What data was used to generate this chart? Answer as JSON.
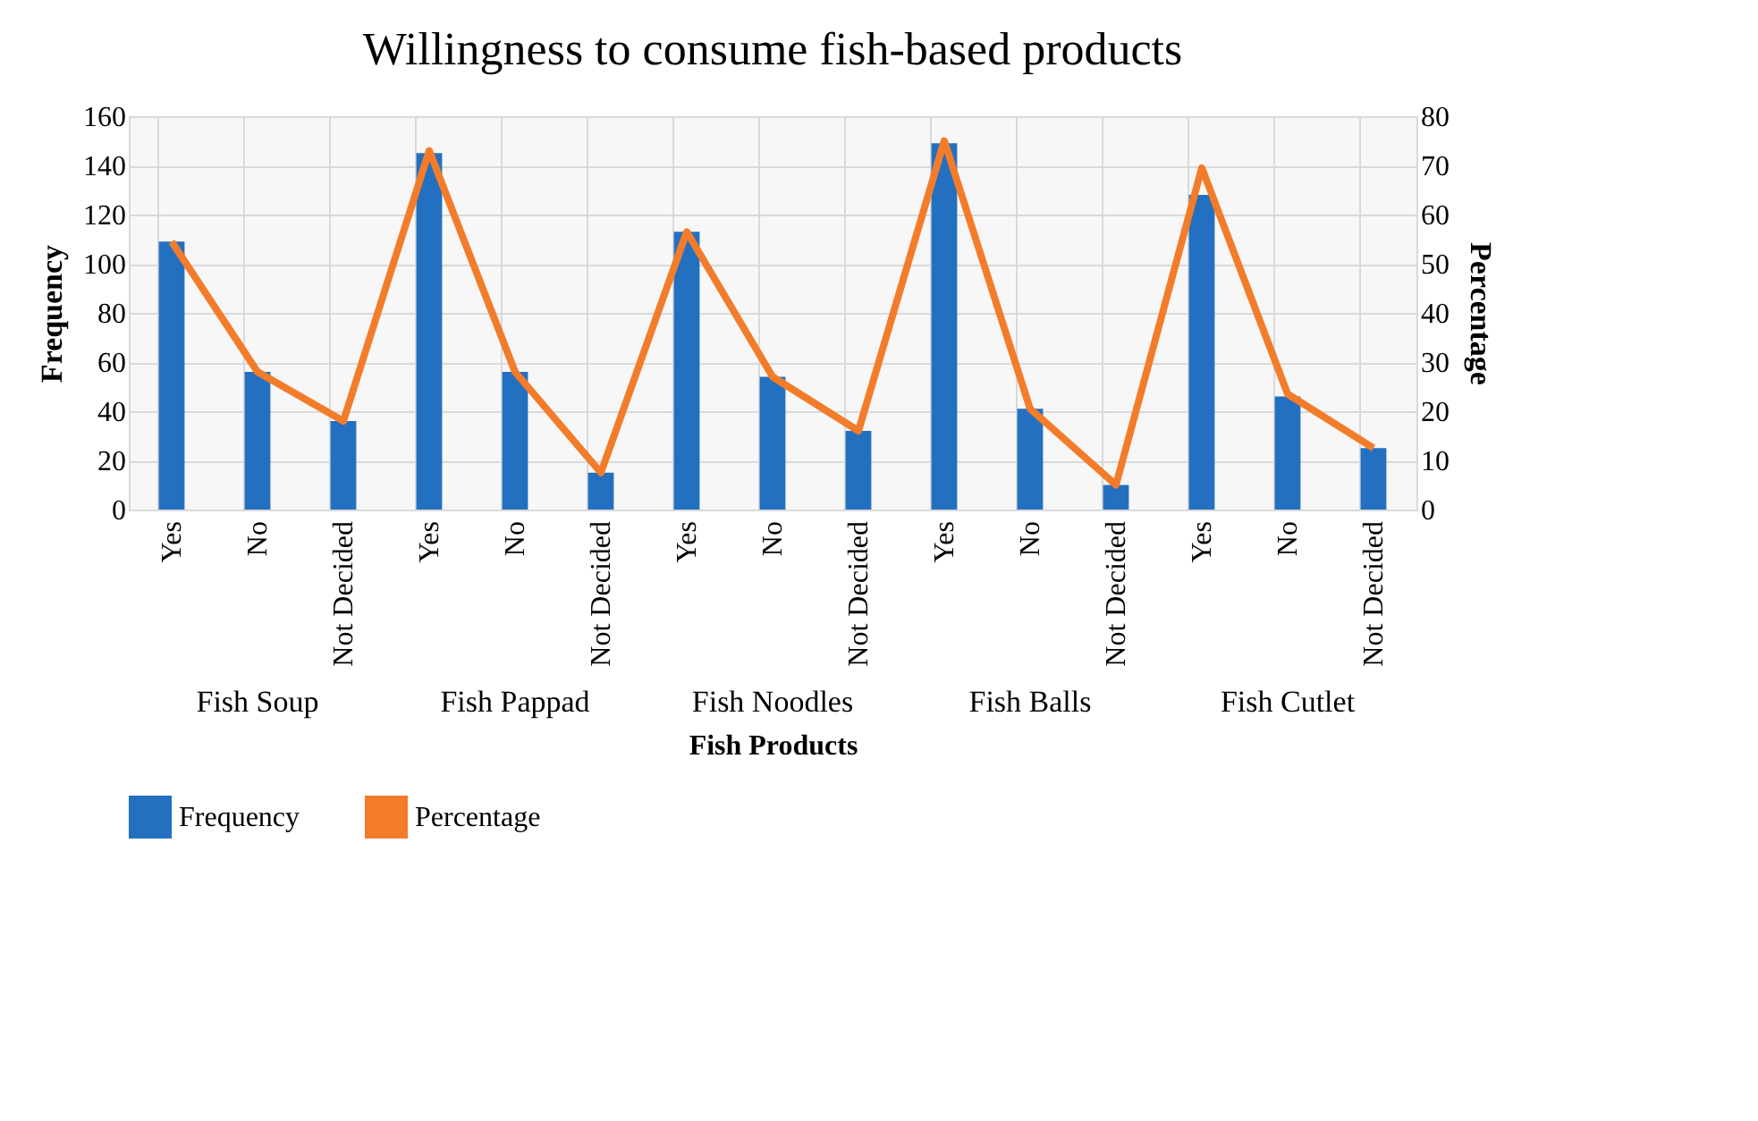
{
  "chart_data": {
    "type": "bar",
    "title": "Willingness to consume fish-based products",
    "xlabel": "Fish Products",
    "ylabel": "Frequency",
    "y2label": "Percentage",
    "categories": [
      "Yes",
      "No",
      "Not Decided",
      "Yes",
      "No",
      "Not Decided",
      "Yes",
      "No",
      "Not Decided",
      "Yes",
      "No",
      "Not Decided",
      "Yes",
      "No",
      "Not Decided"
    ],
    "series": [
      {
        "name": "Frequency",
        "color": "#2470c0",
        "values": [
          109,
          56,
          36,
          145,
          56,
          15,
          113,
          54,
          32,
          149,
          41,
          10,
          128,
          46,
          25
        ]
      },
      {
        "name": "Percentage",
        "type": "line",
        "axis": "y2",
        "color": "#f37c2b",
        "values": [
          54.5,
          28,
          18,
          73,
          28,
          7.5,
          56.5,
          27,
          16,
          75,
          20.5,
          5,
          69.5,
          23.5,
          12.5
        ]
      }
    ],
    "ylim": [
      0,
      160
    ],
    "yticks": [
      0,
      20,
      40,
      60,
      80,
      100,
      120,
      140,
      160
    ],
    "y2lim": [
      0,
      80
    ],
    "y2ticks": [
      0,
      10,
      20,
      30,
      40,
      50,
      60,
      70,
      80
    ],
    "grid": true,
    "legend": "bottom",
    "annotations": [
      "Fish Soup",
      "Fish Pappad",
      "Fish Noodles",
      "Fish Balls",
      "Fish Cutlet"
    ]
  }
}
